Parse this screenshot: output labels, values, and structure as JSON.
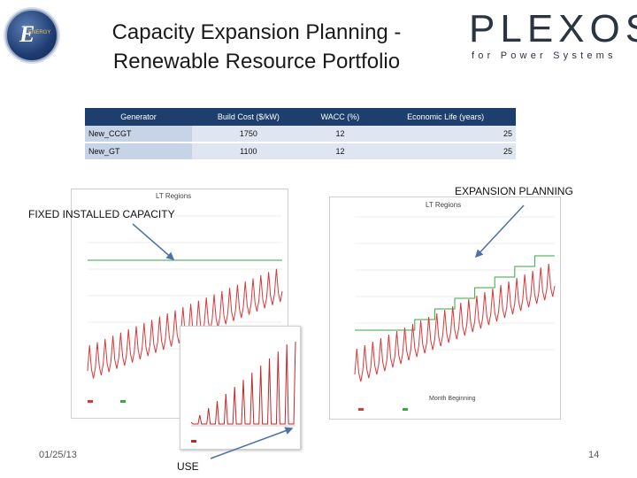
{
  "header": {
    "title_line1": "Capacity Expansion Planning -",
    "title_line2": "Renewable Resource Portfolio",
    "logo_left_letter": "E",
    "logo_left_text": "ENERGY",
    "brand": "PLEXOS",
    "brand_mark": "®",
    "brand_tagline": "for Power Systems"
  },
  "table": {
    "columns": [
      "Generator",
      "Build Cost ($/kW)",
      "WACC (%)",
      "Economic Life (years)"
    ],
    "rows": [
      [
        "New_CCGT",
        "1750",
        "12",
        "25"
      ],
      [
        "New_GT",
        "1100",
        "12",
        "25"
      ]
    ]
  },
  "callouts": {
    "fixed": "FIXED INSTALLED CAPACITY",
    "expansion": "EXPANSION PLANNING",
    "use": "USE"
  },
  "charts": {
    "left_title": "LT Regions",
    "right_title": "LT Regions",
    "right_xlabel": "Month Beginning"
  },
  "footer": {
    "date": "01/25/13",
    "page": "14"
  },
  "colors": {
    "header_blue": "#1e3f6e",
    "load_red": "#d9383a",
    "capacity_green": "#3aa541"
  }
}
